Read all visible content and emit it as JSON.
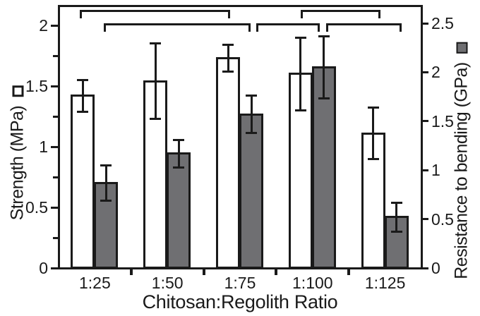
{
  "chart_data": {
    "type": "bar",
    "title": "",
    "xlabel": "Chitosan:Regolith Ratio",
    "categories": [
      "1:25",
      "1:50",
      "1:75",
      "1:100",
      "1:125"
    ],
    "axes": {
      "left": {
        "label": "Strength (MPa)",
        "unit": "MPa",
        "min": 0,
        "max": 2,
        "tick_values": [
          0,
          0.5,
          1,
          1.5,
          2
        ],
        "tick_labels": [
          "0",
          "0.5",
          "1",
          "1.5",
          "2"
        ],
        "minor_tick_step": 0.25,
        "marker": "open-square"
      },
      "right": {
        "label": "Resistance to bending (GPa)",
        "unit": "GPa",
        "min": 0,
        "max": 2.5,
        "tick_values": [
          0,
          0.5,
          1,
          1.5,
          2,
          2.5
        ],
        "tick_labels": [
          "0",
          "0.5",
          "1",
          "1.5",
          "2",
          "2.5"
        ],
        "marker": "filled-square"
      }
    },
    "series": [
      {
        "name": "Strength",
        "axis": "left",
        "fill": "#ffffff",
        "values": [
          1.42,
          1.54,
          1.73,
          1.6,
          1.11
        ],
        "errors": [
          0.13,
          0.31,
          0.11,
          0.3,
          0.21
        ]
      },
      {
        "name": "Resistance to bending",
        "axis": "right",
        "fill": "#6f6f72",
        "values": [
          0.87,
          1.17,
          1.57,
          2.05,
          0.52
        ],
        "errors": [
          0.18,
          0.14,
          0.19,
          0.32,
          0.15
        ]
      }
    ],
    "significance_brackets": [
      {
        "row": "upper",
        "from": {
          "series": 0,
          "category": 0
        },
        "to": {
          "series": 0,
          "category": 2
        },
        "dx_from": -4,
        "dx_to": 0
      },
      {
        "row": "lower",
        "from": {
          "series": 1,
          "category": 0
        },
        "to": {
          "series": 1,
          "category": 2
        },
        "dx_from": -3,
        "dx_to": -4
      },
      {
        "row": "lower",
        "from": {
          "series": 1,
          "category": 2
        },
        "to": {
          "series": 1,
          "category": 3
        },
        "dx_from": 7,
        "dx_to": -9
      },
      {
        "row": "upper",
        "from": {
          "series": 0,
          "category": 3
        },
        "to": {
          "series": 0,
          "category": 4
        },
        "dx_from": 0,
        "dx_to": 7
      },
      {
        "row": "lower",
        "from": {
          "series": 1,
          "category": 3
        },
        "to": {
          "series": 1,
          "category": 4
        },
        "dx_from": 3,
        "dx_to": 4
      }
    ],
    "grid": false,
    "legend": "markers-attached-to-axis-labels",
    "colors": {
      "axis": "#1a1a1a",
      "text": "#1a1a1a",
      "bar_outline": "#1a1a1a",
      "gray_fill": "#6f6f72",
      "white_fill": "#ffffff",
      "background": "#ffffff"
    }
  }
}
